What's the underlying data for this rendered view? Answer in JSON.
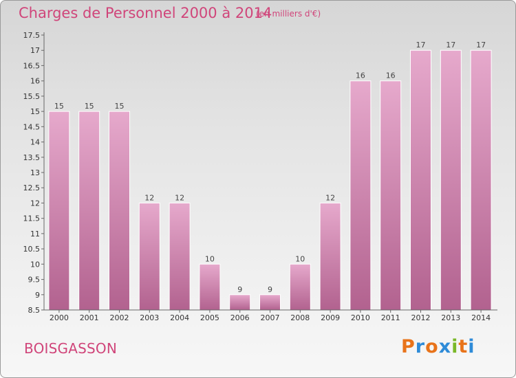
{
  "header": {
    "title": "Charges de Personnel 2000 à 2014",
    "subtitle": "(en milliers d'€)"
  },
  "footer": {
    "commune": "BOISGASSON",
    "logo": "Proxiti"
  },
  "colors": {
    "title": "#d0457a",
    "bar_top": "#e6a9cc",
    "bar_bottom": "#b2628f",
    "logo_letters": [
      "#e8731a",
      "#2e8bd8",
      "#e8731a",
      "#2e8bd8",
      "#7ab829",
      "#e8731a",
      "#2e8bd8"
    ]
  },
  "chart_data": {
    "type": "bar",
    "categories": [
      "2000",
      "2001",
      "2002",
      "2003",
      "2004",
      "2005",
      "2006",
      "2007",
      "2008",
      "2009",
      "2010",
      "2011",
      "2012",
      "2013",
      "2014"
    ],
    "values": [
      15,
      15,
      15,
      12,
      12,
      10,
      9,
      9,
      10,
      12,
      16,
      16,
      17,
      17,
      17
    ],
    "data_labels": [
      "15",
      "15",
      "15",
      "12",
      "12",
      "10",
      "9",
      "9",
      "10",
      "12",
      "16",
      "16",
      "17",
      "17",
      "17"
    ],
    "yticks": [
      "8.5",
      "9",
      "9.5",
      "10",
      "10.5",
      "11",
      "11.5",
      "12",
      "12.5",
      "13",
      "13.5",
      "14",
      "14.5",
      "15",
      "15.5",
      "16",
      "16.5",
      "17",
      "17.5"
    ],
    "ylim": [
      8.5,
      17.5
    ],
    "grid": false,
    "legend": false
  }
}
